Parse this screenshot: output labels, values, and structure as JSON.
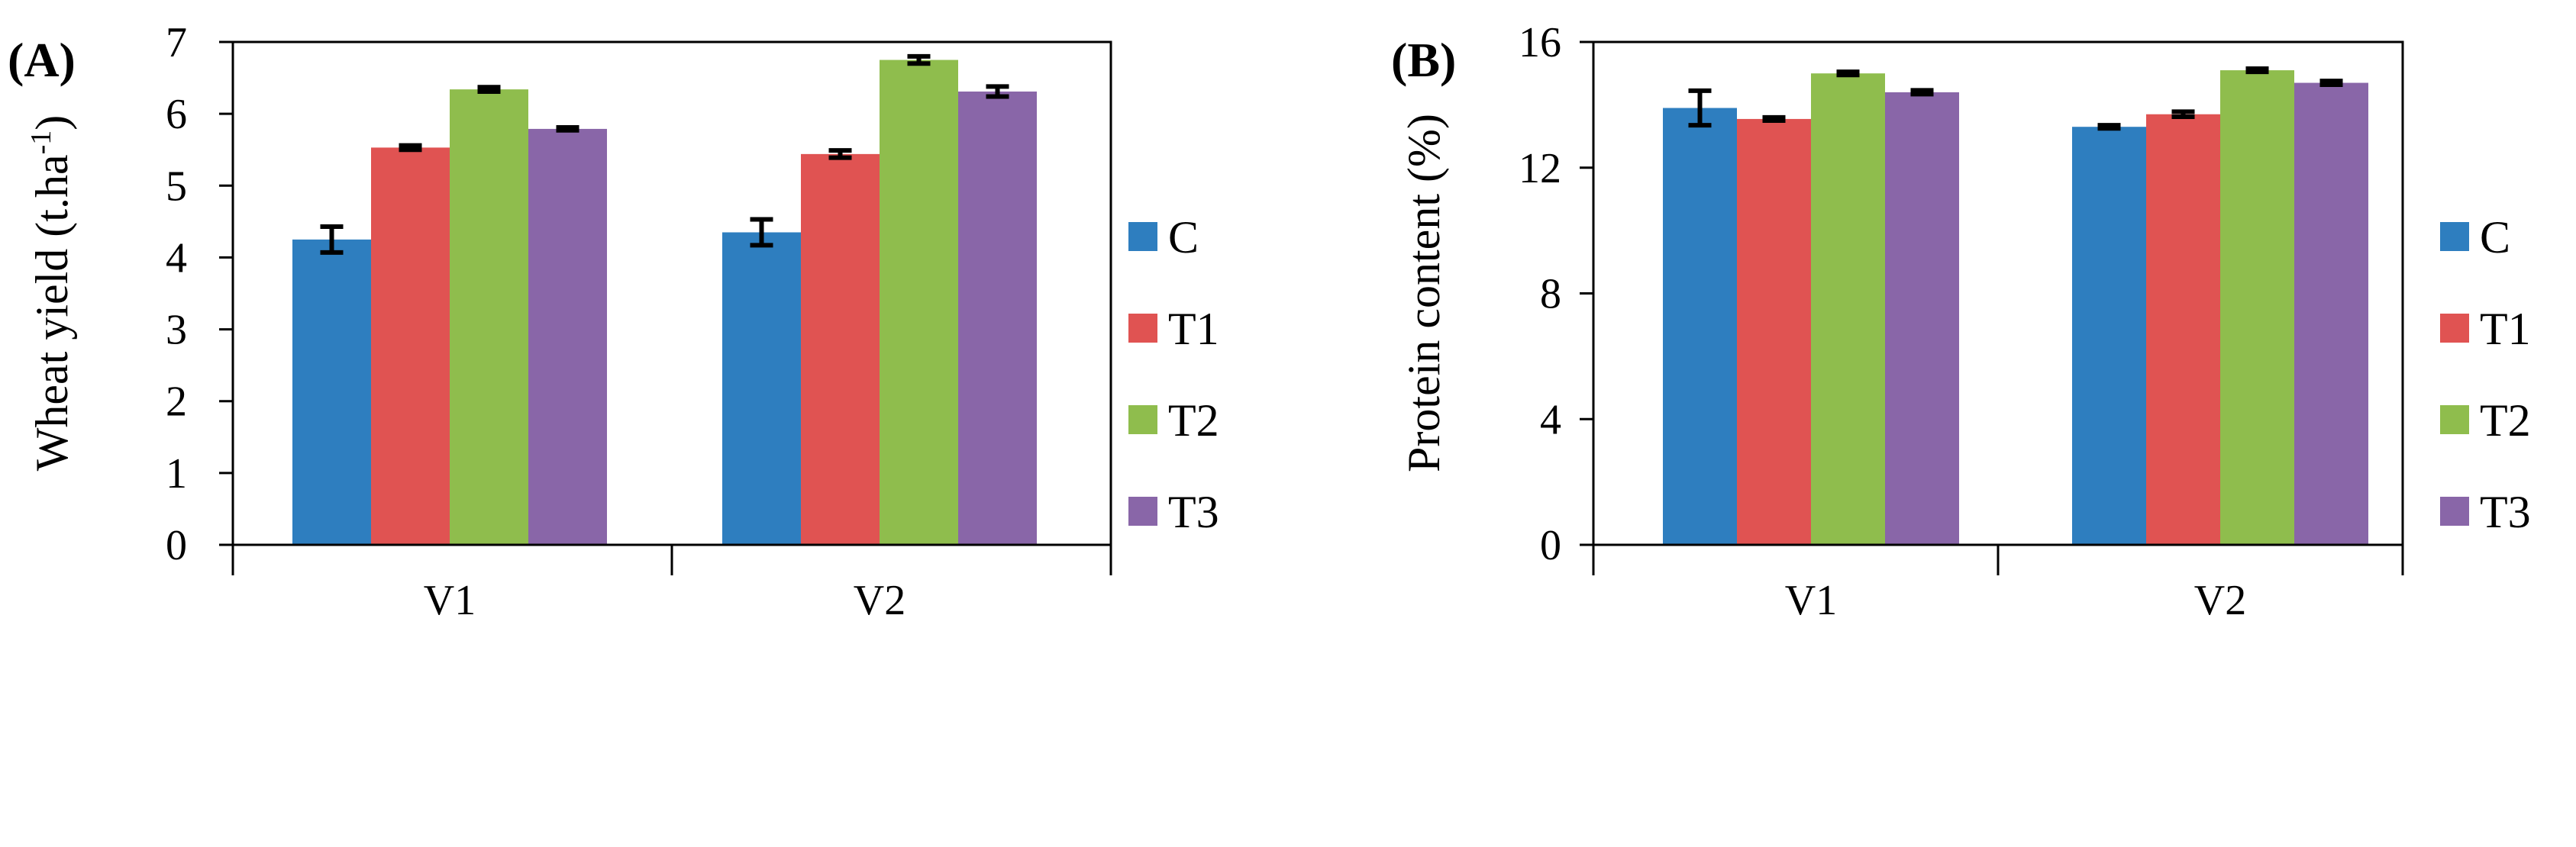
{
  "panels": [
    {
      "label": "(A)",
      "chart_data": {
        "type": "bar",
        "categories": [
          "V1",
          "V2"
        ],
        "ylabel_main": "Wheat yield (t.ha",
        "ylabel_sup": "-1",
        "ylabel_end": ")",
        "xlabel": "",
        "ylim": [
          0,
          7
        ],
        "yticks": [
          0,
          1,
          2,
          3,
          4,
          5,
          6,
          7
        ],
        "series": [
          {
            "name": "C",
            "values": [
              4.25,
              4.35
            ],
            "errors": [
              0.18,
              0.18
            ],
            "color": "#2e7ebf"
          },
          {
            "name": "T1",
            "values": [
              5.53,
              5.44
            ],
            "errors": [
              0.03,
              0.05
            ],
            "color": "#e05352"
          },
          {
            "name": "T2",
            "values": [
              6.34,
              6.75
            ],
            "errors": [
              0.03,
              0.05
            ],
            "color": "#8fbd4d"
          },
          {
            "name": "T3",
            "values": [
              5.79,
              6.31
            ],
            "errors": [
              0.02,
              0.07
            ],
            "color": "#8966a8"
          }
        ],
        "legend_position": "right",
        "grid": false
      }
    },
    {
      "label": "(B)",
      "chart_data": {
        "type": "bar",
        "categories": [
          "V1",
          "V2"
        ],
        "ylabel_main": "Protein content (%)",
        "ylabel_sup": "",
        "ylabel_end": "",
        "xlabel": "",
        "ylim": [
          0,
          16
        ],
        "yticks": [
          0,
          4,
          8,
          12,
          16
        ],
        "series": [
          {
            "name": "C",
            "values": [
              13.9,
              13.3
            ],
            "errors": [
              0.55,
              0.05
            ],
            "color": "#2e7ebf"
          },
          {
            "name": "T1",
            "values": [
              13.55,
              13.7
            ],
            "errors": [
              0.05,
              0.08
            ],
            "color": "#e05352"
          },
          {
            "name": "T2",
            "values": [
              15.0,
              15.1
            ],
            "errors": [
              0.05,
              0.05
            ],
            "color": "#8fbd4d"
          },
          {
            "name": "T3",
            "values": [
              14.4,
              14.7
            ],
            "errors": [
              0.06,
              0.06
            ],
            "color": "#8966a8"
          }
        ],
        "legend_position": "right",
        "grid": false
      }
    }
  ]
}
